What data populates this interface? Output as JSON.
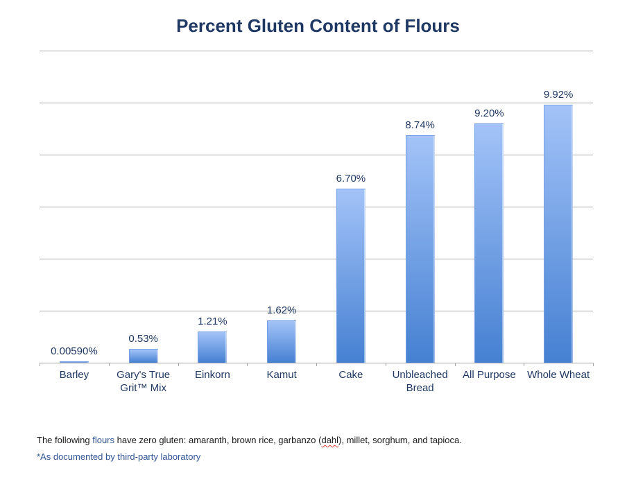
{
  "chart_data": {
    "type": "bar",
    "title": "Percent Gluten Content of Flours",
    "categories": [
      "Barley",
      "Gary's True Grit™ Mix",
      "Einkorn",
      "Kamut",
      "Cake",
      "Unbleached Bread",
      "All Purpose",
      "Whole Wheat"
    ],
    "values": [
      0.0059,
      0.53,
      1.21,
      1.62,
      6.7,
      8.74,
      9.2,
      9.92
    ],
    "value_labels": [
      "0.00590%",
      "0.53%",
      "1.21%",
      "1.62%",
      "6.70%",
      "8.74%",
      "9.20%",
      "9.92%"
    ],
    "xlabel": "",
    "ylabel": "",
    "ylim": [
      0,
      12
    ],
    "gridline_step": 2,
    "grid": true,
    "legend": false,
    "y_tick_labels_shown": false,
    "bar_color_top": "#A3C3F8",
    "bar_color_bottom": "#4580D2"
  },
  "footnotes": {
    "line1_prefix": "The following ",
    "line1_highlight": "flours",
    "line1_mid": " have zero gluten: amaranth, brown rice, garbanzo (",
    "line1_misspelled": "dahl",
    "line1_suffix": "), millet, sorghum, and tapioca.",
    "line2": "*As documented by third-party laboratory"
  },
  "colors": {
    "title_text": "#1F3864",
    "data_label_text": "#1F3864",
    "category_label_text": "#1F3864",
    "gridline": "#8C8C8C",
    "axis_line": "#A6A6A6",
    "footnote_text": "#1a1a1a",
    "footnote_blue": "#2F5496",
    "spellcheck_squiggle": "#E03C31"
  }
}
